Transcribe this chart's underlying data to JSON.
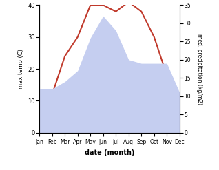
{
  "months": [
    "Jan",
    "Feb",
    "Mar",
    "Apr",
    "May",
    "Jun",
    "Jul",
    "Aug",
    "Sep",
    "Oct",
    "Nov",
    "Dec"
  ],
  "temperature": [
    5,
    12,
    24,
    30,
    40,
    40,
    38,
    41,
    38,
    30,
    18,
    11
  ],
  "precipitation": [
    12,
    12,
    14,
    17,
    26,
    32,
    28,
    20,
    19,
    19,
    19,
    11
  ],
  "temp_color": "#c0392b",
  "precip_color_fill": "#c5cef0",
  "left_ylim": [
    0,
    40
  ],
  "right_ylim": [
    0,
    35
  ],
  "left_yticks": [
    0,
    10,
    20,
    30,
    40
  ],
  "right_yticks": [
    0,
    5,
    10,
    15,
    20,
    25,
    30,
    35
  ],
  "xlabel": "date (month)",
  "ylabel_left": "max temp (C)",
  "ylabel_right": "med. precipitation (kg/m2)",
  "bg_color": "#ffffff"
}
